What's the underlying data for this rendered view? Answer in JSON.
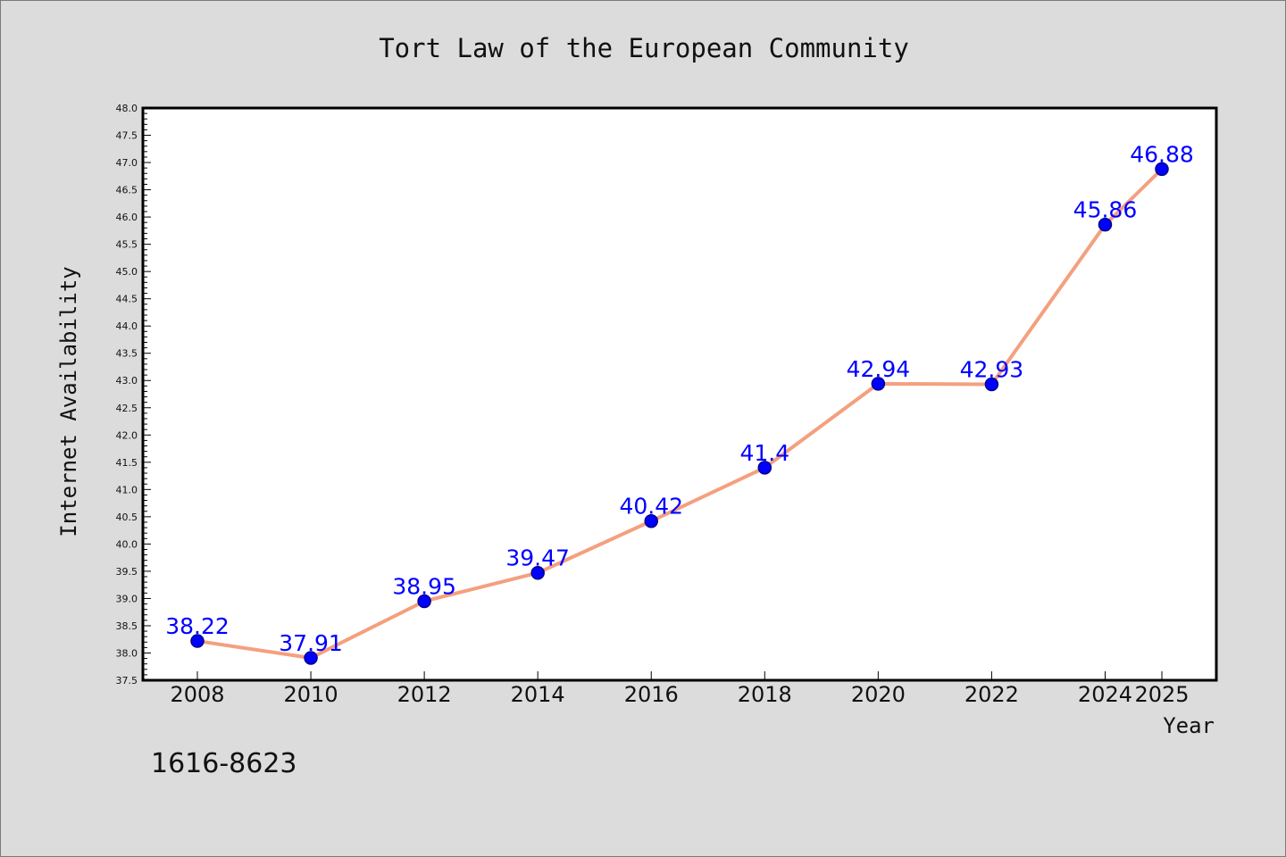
{
  "chart_data": {
    "type": "line",
    "title": "Tort Law of the European Community",
    "xlabel": "Year",
    "ylabel": "Internet Availability",
    "x": [
      "2008",
      "2010",
      "2012",
      "2014",
      "2016",
      "2018",
      "2020",
      "2022",
      "2024",
      "2025"
    ],
    "series": [
      {
        "values": [
          38.22,
          37.91,
          38.95,
          39.47,
          40.42,
          41.4,
          42.94,
          42.93,
          45.86,
          46.88
        ],
        "data_labels": [
          "38.22",
          "37.91",
          "38.95",
          "39.47",
          "40.42",
          "41.4",
          "42.94",
          "42.93",
          "45.86",
          "46.88"
        ]
      }
    ],
    "ylim": [
      37.5,
      48.0
    ],
    "y_major_ticks": [
      "37.5",
      "38.0",
      "38.5",
      "39.0",
      "39.5",
      "40.0",
      "40.5",
      "41.0",
      "41.5",
      "42.0",
      "42.5",
      "43.0",
      "43.5",
      "44.0",
      "44.5",
      "45.0",
      "45.5",
      "46.0",
      "46.5",
      "47.0",
      "47.5",
      "48.0"
    ],
    "y_minor_tick_step": 0.1,
    "grid": false,
    "legend": "none",
    "colors": {
      "line": "#f4a07e",
      "marker_fill": "#0000ff",
      "marker_edge": "#00008b",
      "data_label": "#0000ff",
      "background": "#dcdcdc",
      "plot_background": "#ffffff"
    },
    "footer_text": "1616-8623"
  }
}
